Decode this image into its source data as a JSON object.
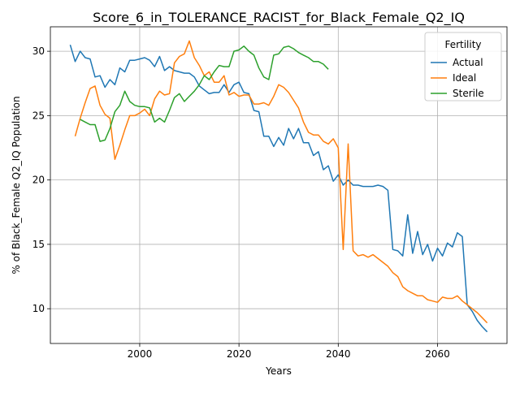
{
  "chart_data": {
    "type": "line",
    "title": "Score_6_in_TOLERANCE_RACIST_for_Black_Female_Q2_IQ",
    "xlabel": "Years",
    "ylabel": "% of Black_Female Q2_IQ Population",
    "xlim": [
      1982,
      2074
    ],
    "ylim": [
      7.3,
      31.9
    ],
    "xticks": [
      2000,
      2020,
      2040,
      2060
    ],
    "yticks": [
      10,
      15,
      20,
      25,
      30
    ],
    "grid": true,
    "legend": {
      "title": "Fertility",
      "placement": "top-right"
    },
    "series": [
      {
        "name": "Actual",
        "color": "#1f77b4",
        "x": [
          1986,
          1987,
          1988,
          1989,
          1990,
          1991,
          1992,
          1993,
          1994,
          1995,
          1996,
          1997,
          1998,
          1999,
          2000,
          2001,
          2002,
          2003,
          2004,
          2005,
          2006,
          2007,
          2008,
          2009,
          2010,
          2011,
          2012,
          2013,
          2014,
          2015,
          2016,
          2017,
          2018,
          2019,
          2020,
          2021,
          2022,
          2023,
          2024,
          2025,
          2026,
          2027,
          2028,
          2029,
          2030,
          2031,
          2032,
          2033,
          2034,
          2035,
          2036,
          2037,
          2038,
          2039,
          2040,
          2041,
          2042,
          2043,
          2044,
          2045,
          2046,
          2047,
          2048,
          2049,
          2050,
          2051,
          2052,
          2053,
          2054,
          2055,
          2056,
          2057,
          2058,
          2059,
          2060,
          2061,
          2062,
          2063,
          2064,
          2065,
          2066,
          2067,
          2068,
          2069,
          2070
        ],
        "values": [
          30.5,
          29.2,
          30.0,
          29.5,
          29.4,
          28.0,
          28.1,
          27.2,
          27.8,
          27.4,
          28.7,
          28.4,
          29.3,
          29.3,
          29.4,
          29.5,
          29.3,
          28.8,
          29.6,
          28.5,
          28.8,
          28.5,
          28.4,
          28.3,
          28.3,
          28.0,
          27.3,
          27.0,
          26.7,
          26.8,
          26.8,
          27.4,
          26.8,
          27.4,
          27.6,
          26.8,
          26.7,
          25.4,
          25.3,
          23.4,
          23.4,
          22.6,
          23.3,
          22.7,
          24.0,
          23.2,
          24.0,
          22.9,
          22.9,
          21.9,
          22.2,
          20.8,
          21.1,
          19.9,
          20.4,
          19.6,
          20.0,
          19.6,
          19.6,
          19.5,
          19.5,
          19.5,
          19.6,
          19.5,
          19.2,
          14.6,
          14.5,
          14.1,
          17.3,
          14.3,
          16.0,
          14.2,
          15.0,
          13.7,
          14.7,
          14.1,
          15.1,
          14.8,
          15.9,
          15.6,
          10.3,
          9.8,
          9.1,
          8.6,
          8.2
        ]
      },
      {
        "name": "Ideal",
        "color": "#ff7f0e",
        "x": [
          1987,
          1988,
          1989,
          1990,
          1991,
          1992,
          1993,
          1994,
          1995,
          1996,
          1997,
          1998,
          1999,
          2000,
          2001,
          2002,
          2003,
          2004,
          2005,
          2006,
          2007,
          2008,
          2009,
          2010,
          2011,
          2012,
          2013,
          2014,
          2015,
          2016,
          2017,
          2018,
          2019,
          2020,
          2021,
          2022,
          2023,
          2024,
          2025,
          2026,
          2027,
          2028,
          2029,
          2030,
          2031,
          2032,
          2033,
          2034,
          2035,
          2036,
          2037,
          2038,
          2039,
          2040,
          2041,
          2042,
          2043,
          2044,
          2045,
          2046,
          2047,
          2048,
          2049,
          2050,
          2051,
          2052,
          2053,
          2054,
          2055,
          2056,
          2057,
          2058,
          2059,
          2060,
          2061,
          2062,
          2063,
          2064,
          2065,
          2066,
          2067,
          2068,
          2069,
          2070
        ],
        "values": [
          23.4,
          24.8,
          26.0,
          27.1,
          27.3,
          25.8,
          25.1,
          24.8,
          21.6,
          22.7,
          23.9,
          25.0,
          25.0,
          25.2,
          25.5,
          25.0,
          26.3,
          26.9,
          26.6,
          26.7,
          29.1,
          29.6,
          29.8,
          30.8,
          29.5,
          28.9,
          28.1,
          28.4,
          27.6,
          27.6,
          28.1,
          26.6,
          26.8,
          26.5,
          26.6,
          26.6,
          25.9,
          25.9,
          26.0,
          25.8,
          26.5,
          27.4,
          27.2,
          26.8,
          26.2,
          25.6,
          24.5,
          23.7,
          23.5,
          23.5,
          23.0,
          22.8,
          23.2,
          22.5,
          14.6,
          22.8,
          14.5,
          14.1,
          14.2,
          14.0,
          14.2,
          13.9,
          13.6,
          13.3,
          12.8,
          12.5,
          11.7,
          11.4,
          11.2,
          11.0,
          11.0,
          10.7,
          10.6,
          10.5,
          10.9,
          10.8,
          10.8,
          11.0,
          10.6,
          10.3,
          10.0,
          9.7,
          9.3,
          8.9
        ]
      },
      {
        "name": "Sterile",
        "color": "#2ca02c",
        "x": [
          1988,
          1989,
          1990,
          1991,
          1992,
          1993,
          1994,
          1995,
          1996,
          1997,
          1998,
          1999,
          2000,
          2001,
          2002,
          2003,
          2004,
          2005,
          2006,
          2007,
          2008,
          2009,
          2010,
          2011,
          2012,
          2013,
          2014,
          2015,
          2016,
          2017,
          2018,
          2019,
          2020,
          2021,
          2022,
          2023,
          2024,
          2025,
          2026,
          2027,
          2028,
          2029,
          2030,
          2031,
          2032,
          2033,
          2034,
          2035,
          2036,
          2037,
          2038
        ],
        "values": [
          24.7,
          24.5,
          24.3,
          24.3,
          23.0,
          23.1,
          24.0,
          25.3,
          25.8,
          26.9,
          26.1,
          25.8,
          25.7,
          25.7,
          25.6,
          24.5,
          24.8,
          24.5,
          25.4,
          26.4,
          26.7,
          26.1,
          26.5,
          26.9,
          27.4,
          28.1,
          27.8,
          28.4,
          28.9,
          28.8,
          28.8,
          30.0,
          30.1,
          30.4,
          30.0,
          29.7,
          28.7,
          28.0,
          27.8,
          29.7,
          29.8,
          30.3,
          30.4,
          30.2,
          29.9,
          29.7,
          29.5,
          29.2,
          29.2,
          29.0,
          28.6
        ]
      }
    ]
  }
}
